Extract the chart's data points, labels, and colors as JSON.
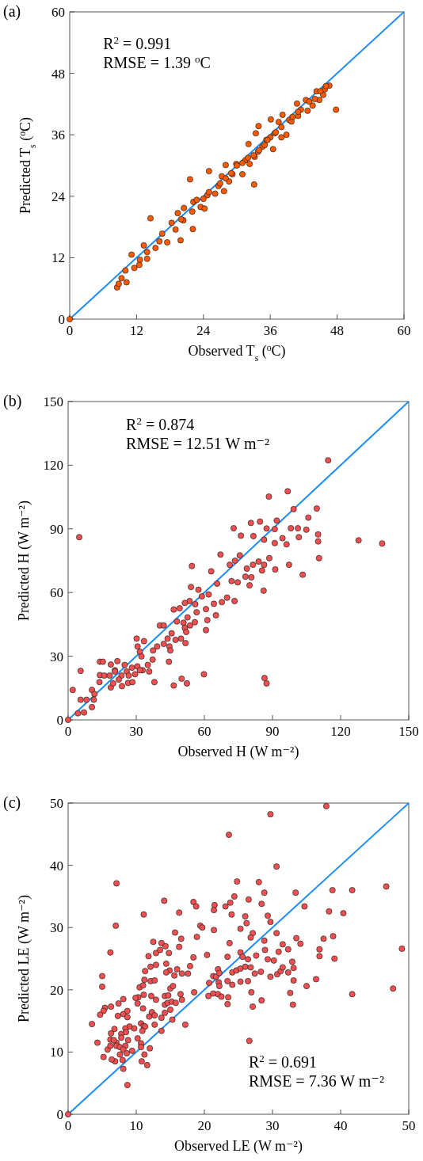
{
  "chart_data": [
    {
      "type": "scatter",
      "title": "(a)",
      "xlabel": "Observed T$_{s}$ ($^{o}$C)",
      "ylabel": "Predicted T$_{s}$ ($^{o}$C)",
      "annotations": [
        "R$^{2}$ = 0.991",
        "RMSE = 1.39 $^{o}$C"
      ],
      "xlim": [
        0,
        60
      ],
      "ylim": [
        0,
        60
      ],
      "xticks": [
        0,
        12,
        24,
        36,
        48,
        60
      ],
      "yticks": [
        0,
        12,
        24,
        36,
        48,
        60
      ],
      "grid": false,
      "series": [
        {
          "type": "line",
          "color": "#1a8cff",
          "x": [
            0,
            60
          ],
          "values": [
            0,
            60
          ]
        },
        {
          "marker": "circle",
          "color": "#ff5a00",
          "x": [
            0,
            8.5,
            8.8,
            9.3,
            10.2,
            10.0,
            11.1,
            11.6,
            12.6,
            12.5,
            13.3,
            13.9,
            13.9,
            14.5,
            15.4,
            16.1,
            16.6,
            17.5,
            18.3,
            19.0,
            19.9,
            19.4,
            20.4,
            20.5,
            21.6,
            22.1,
            22.2,
            22.8,
            23.5,
            24.2,
            24.7,
            25.0,
            26.1,
            26.7,
            27.3,
            27.7,
            28.0,
            28.6,
            29.2,
            29.9,
            31.0,
            31.5,
            32.3,
            32.1,
            33.1,
            33.2,
            33.8,
            33.9,
            33.4,
            34.6,
            35.3,
            36.1,
            36.5,
            36.8,
            37.5,
            38.0,
            38.2,
            38.9,
            39.4,
            39.8,
            40.8,
            41.0,
            41.5,
            42.4,
            42.7,
            43.6,
            44.3,
            44.8,
            45.5,
            45.8,
            46.6,
            47.8,
            30,
            32,
            34,
            35,
            36,
            37,
            38,
            40,
            41,
            43,
            44,
            45,
            46,
            20,
            22,
            24,
            25,
            27,
            28,
            29,
            31,
            33,
            35.5
          ],
          "values": [
            0,
            6.2,
            6.9,
            8.0,
            7.2,
            9.5,
            12.6,
            10.0,
            11.6,
            10.6,
            14.4,
            13.1,
            11.8,
            19.7,
            13.9,
            15.2,
            16.7,
            15.0,
            18.8,
            17.5,
            15.4,
            20.7,
            19.3,
            21.7,
            27.3,
            17.6,
            22.9,
            23.3,
            21.9,
            21.6,
            24.2,
            28.9,
            24.5,
            26.0,
            27.9,
            25.0,
            30.1,
            26.9,
            28.3,
            30.3,
            28.3,
            31.0,
            30.3,
            34.2,
            26.3,
            31.7,
            32.7,
            37.7,
            36.3,
            33.7,
            35.0,
            39.0,
            33.2,
            36.3,
            38.5,
            35.5,
            39.9,
            36.0,
            38.9,
            38.6,
            42.1,
            39.7,
            40.9,
            42.8,
            40.7,
            41.7,
            44.5,
            42.8,
            43.8,
            44.9,
            45.6,
            40.9,
            30,
            31.5,
            33,
            34,
            35.5,
            36.5,
            37.5,
            39.5,
            40.5,
            42.5,
            43,
            44.5,
            45.5,
            19.5,
            21,
            23.5,
            24.8,
            26.5,
            27.5,
            28.5,
            30.5,
            32,
            35
          ]
        }
      ]
    },
    {
      "type": "scatter",
      "title": "(b)",
      "xlabel": "Observed H (W m⁻²)",
      "ylabel": "Predicted H (W m⁻²)",
      "annotations": [
        "R$^{2}$ = 0.874",
        "RMSE = 12.51 W m⁻²"
      ],
      "xlim": [
        0,
        150
      ],
      "ylim": [
        0,
        150
      ],
      "xticks": [
        0,
        30,
        60,
        90,
        120,
        150
      ],
      "yticks": [
        0,
        30,
        60,
        90,
        120,
        150
      ],
      "grid": false,
      "series": [
        {
          "type": "line",
          "color": "#1a8cff",
          "x": [
            0,
            150
          ],
          "values": [
            0,
            150
          ]
        },
        {
          "marker": "circle",
          "color": "#f25050",
          "x": [
            0,
            114.5,
            96.7,
            88.4,
            99.3,
            109.5,
            105.8,
            110.1,
            110.1,
            110.5,
            127.9,
            138.3,
            4.9,
            103.3,
            104.9,
            101.6,
            101.2,
            98.1,
            97.3,
            96.2,
            91.9,
            91.0,
            87.4,
            84.5,
            80.5,
            72.9,
            76.1,
            81.6,
            86.3,
            91.0,
            94.4,
            88.6,
            86.3,
            83.9,
            81.4,
            78.7,
            75.6,
            73.5,
            71.2,
            67.1,
            85.4,
            80.7,
            78.1,
            74.7,
            72.0,
            86.1,
            79.9,
            91.2,
            65.6,
            63.0,
            61.9,
            67.7,
            70.0,
            73.3,
            65.1,
            64.2,
            60.7,
            61.3,
            60.7,
            58.9,
            57.4,
            54.5,
            54.1,
            53.5,
            56.0,
            56.6,
            52.6,
            51.4,
            49.1,
            46.5,
            47.9,
            50.8,
            51.4,
            53.7,
            55.8,
            52.0,
            51.7,
            49.7,
            47.3,
            45.6,
            43.8,
            44.6,
            45.0,
            42.1,
            40.4,
            42.1,
            39.2,
            37.4,
            37.2,
            35.1,
            33.4,
            30.2,
            30.6,
            31.6,
            32.3,
            30.5,
            32.8,
            35.7,
            28.1,
            25.8,
            23.5,
            24.9,
            21.7,
            18.8,
            20.6,
            22.3,
            23.7,
            26.4,
            28.3,
            26.7,
            29.5,
            31.6,
            38.0,
            44.4,
            46.5,
            50.0,
            52.3,
            59.8,
            86.5,
            87.4,
            14.0,
            15.3,
            14.0,
            15.9,
            18.3,
            20.6,
            18.8,
            19.8,
            13.8,
            10.5,
            11.6,
            11.3,
            10.5,
            8.1,
            5.5,
            5.5,
            2.0,
            7.0,
            4.3
          ],
          "values": [
            0,
            122.3,
            107.7,
            105.2,
            99.3,
            99.6,
            95.3,
            87.4,
            84.1,
            76.2,
            84.6,
            83.1,
            86.1,
            68.4,
            89.6,
            86.1,
            90.3,
            90.3,
            73.1,
            82.7,
            93.9,
            89.9,
            90.2,
            93.4,
            92.8,
            90.3,
            86.8,
            86.6,
            84.9,
            83.3,
            85.6,
            76.2,
            73.1,
            74.6,
            73.1,
            71.3,
            77.5,
            75.0,
            73.1,
            77.9,
            70.4,
            67.2,
            67.5,
            64.8,
            65.4,
            60.9,
            63.4,
            70.9,
            64.2,
            70.0,
            59.1,
            55.5,
            57.6,
            56.0,
            49.3,
            54.7,
            52.2,
            47.0,
            42.3,
            58.2,
            61.3,
            72.5,
            62.6,
            56.0,
            54.5,
            50.7,
            48.3,
            55.1,
            52.6,
            52.0,
            46.4,
            45.8,
            43.3,
            44.5,
            46.0,
            41.4,
            36.2,
            38.3,
            37.7,
            40.8,
            38.3,
            34.6,
            32.7,
            35.8,
            44.5,
            44.5,
            34.6,
            32.7,
            28.4,
            25.9,
            37.1,
            38.3,
            34.6,
            32.1,
            29.9,
            25.2,
            23.4,
            22.8,
            24.6,
            22.8,
            20.9,
            25.9,
            27.7,
            26.1,
            23.4,
            19.0,
            15.9,
            17.4,
            17.8,
            20.9,
            21.5,
            23.4,
            17.8,
            27.4,
            16.2,
            19.4,
            17.2,
            21.5,
            19.7,
            17.2,
            27.4,
            27.4,
            21.1,
            20.9,
            20.9,
            22.8,
            15.3,
            17.2,
            17.8,
            14.1,
            12.2,
            9.5,
            6.0,
            9.5,
            9.5,
            23.1,
            14.1,
            3.5,
            3.1
          ]
        }
      ]
    },
    {
      "type": "scatter",
      "title": "(c)",
      "xlabel": "Observed LE (W m⁻²)",
      "ylabel": "Predicted LE (W m⁻²)",
      "annotations": [
        "R$^{2}$ = 0.691",
        "RMSE = 7.36 W m⁻²"
      ],
      "xlim": [
        0,
        50
      ],
      "ylim": [
        0,
        50
      ],
      "xticks": [
        0,
        10,
        20,
        30,
        40,
        50
      ],
      "yticks": [
        0,
        10,
        20,
        30,
        40,
        50
      ],
      "grid": false,
      "series": [
        {
          "type": "line",
          "color": "#1a8cff",
          "x": [
            0,
            50
          ],
          "values": [
            0,
            50
          ]
        },
        {
          "marker": "circle",
          "color": "#f25050",
          "x": [
            0,
            37.9,
            29.7,
            23.6,
            30.6,
            7.1,
            24.8,
            28.0,
            46.7,
            38.8,
            41.7,
            33.4,
            28.8,
            24.4,
            14.1,
            18.4,
            18.8,
            21.5,
            21.4,
            23.1,
            23.8,
            26.5,
            28.4,
            34.7,
            38.3,
            40.4,
            11.1,
            16.3,
            24.0,
            26.0,
            29.3,
            26.2,
            29.7,
            7.0,
            19.4,
            19.7,
            21.4,
            25.3,
            27.1,
            30.6,
            33.5,
            38.9,
            37.5,
            15.7,
            16.6,
            18.9,
            26.8,
            12.5,
            13.7,
            14.3,
            16.3,
            23.7,
            28.8,
            34.1,
            6.2,
            12.9,
            13.5,
            14.8,
            20.4,
            25.3,
            28.9,
            30.9,
            31.5,
            32.3,
            36.9,
            36.9,
            39.1,
            49.0,
            11.8,
            18.4,
            23.4,
            25.6,
            26.4,
            27.6,
            29.3,
            30.2,
            32.9,
            14.4,
            12.9,
            12.1,
            17.9,
            16.0,
            11.3,
            14.9,
            14.4,
            16.7,
            17.6,
            15.6,
            12.1,
            12.7,
            11.2,
            10.5,
            11.0,
            15.0,
            15.4,
            5.0,
            5.0,
            22.0,
            21.3,
            21.7,
            22.2,
            24.1,
            24.7,
            25.3,
            26.0,
            26.8,
            27.4,
            28.3,
            26.4,
            24.1,
            25.3,
            20.7,
            22.1,
            22.2,
            23.4,
            29.7,
            30.7,
            31.2,
            31.5,
            32.3,
            33.1,
            33.1,
            36.4,
            35.0,
            47.7,
            11.1,
            12.2,
            12.9,
            14.2,
            14.7,
            16.5,
            16.7,
            18.5,
            20.6,
            21.3,
            22.0,
            22.5,
            23.5,
            26.9,
            32.6,
            23.4,
            27.1,
            28.4,
            33.0,
            41.7,
            14.2,
            14.6,
            15.2,
            15.8,
            10.3,
            9.9,
            10.2,
            8.1,
            7.4,
            6.3,
            5.4,
            5.2,
            4.7,
            3.5,
            4.3,
            5.2,
            5.8,
            6.2,
            6.2,
            6.3,
            6.8,
            7.3,
            8.1,
            8.7,
            8.7,
            9.7,
            9.0,
            8.4,
            7.8,
            8.5,
            7.8,
            8.8,
            8.4,
            7.1,
            7.1,
            6.7,
            7.6,
            8.1,
            7.6,
            8.6,
            9.4,
            6.9,
            6.4,
            8.0,
            8.1,
            8.7,
            10.2,
            10.7,
            10.7,
            12.0,
            11.2,
            10.8,
            11.6,
            10.7,
            11.1,
            11.3,
            10.9,
            11.0,
            11.9,
            12.3,
            12.7,
            12.7,
            13.7,
            13.7,
            14.2,
            15.0,
            15.3,
            17.2,
            26.6
          ],
          "values": [
            0,
            49.5,
            48.2,
            44.9,
            39.8,
            37.1,
            37.4,
            37.3,
            36.6,
            36.0,
            36.0,
            35.6,
            35.6,
            35.0,
            34.3,
            34.1,
            33.4,
            33.6,
            32.8,
            33.4,
            34.0,
            34.5,
            33.8,
            33.4,
            32.6,
            32.3,
            32.1,
            32.4,
            32.1,
            31.8,
            31.9,
            30.7,
            30.9,
            30.3,
            30.3,
            30.0,
            29.6,
            29.8,
            29.1,
            29.1,
            28.3,
            28.6,
            28.2,
            29.2,
            28.2,
            28.5,
            28.4,
            27.7,
            27.5,
            27.0,
            26.9,
            27.5,
            27.9,
            27.4,
            26.0,
            25.9,
            26.4,
            25.9,
            25.6,
            26.0,
            26.4,
            26.1,
            27.3,
            26.5,
            26.5,
            25.4,
            25.0,
            26.6,
            25.4,
            25.2,
            25.3,
            25.3,
            24.9,
            25.5,
            24.9,
            24.7,
            24.5,
            24.2,
            24.0,
            23.7,
            23.8,
            23.3,
            23.0,
            23.1,
            22.8,
            22.6,
            22.6,
            22.3,
            21.4,
            21.5,
            21.6,
            20.4,
            20.7,
            20.2,
            20.6,
            22.2,
            20.5,
            23.3,
            22.2,
            22.1,
            22.7,
            22.8,
            23.1,
            23.4,
            23.7,
            23.6,
            22.6,
            22.9,
            21.4,
            20.8,
            21.3,
            21.1,
            21.2,
            20.6,
            21.4,
            22.1,
            22.5,
            23.0,
            23.6,
            22.8,
            23.5,
            21.5,
            21.7,
            20.6,
            20.2,
            19.2,
            19.0,
            18.4,
            19.0,
            19.1,
            19.3,
            18.4,
            19.6,
            19.0,
            19.4,
            19.3,
            18.9,
            18.8,
            19.6,
            19.5,
            17.7,
            17.3,
            18.3,
            17.6,
            19.3,
            17.6,
            17.9,
            18.1,
            17.9,
            18.8,
            18.7,
            17.8,
            18.5,
            17.8,
            17.3,
            17.1,
            16.6,
            16.0,
            14.5,
            11.5,
            9.2,
            10.4,
            11.0,
            12.0,
            13.0,
            13.7,
            15.8,
            16.1,
            16.6,
            15.6,
            13.8,
            14.1,
            13.8,
            12.9,
            13.2,
            12.3,
            11.9,
            11.0,
            11.5,
            11.0,
            11.9,
            10.8,
            10.4,
            9.6,
            9.8,
            10.2,
            8.5,
            8.8,
            8.7,
            7.3,
            4.7,
            12.2,
            11.4,
            10.8,
            10.6,
            9.6,
            8.5,
            7.9,
            14.6,
            14.2,
            14.1,
            13.4,
            17.0,
            15.7,
            16.4,
            15.9,
            14.4,
            13.4,
            15.5,
            16.3,
            16.8,
            15.2,
            14.4,
            11.8
          ]
        }
      ]
    }
  ]
}
